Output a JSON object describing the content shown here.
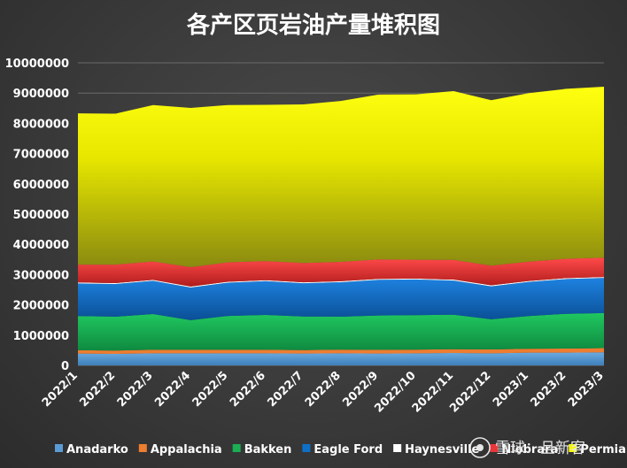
{
  "chart_data": {
    "type": "area",
    "stacked": true,
    "title": "各产区页岩油产量堆积图",
    "xlabel": "",
    "ylabel": "",
    "ylim": [
      0,
      10000000
    ],
    "yticks": [
      0,
      1000000,
      2000000,
      3000000,
      4000000,
      5000000,
      6000000,
      7000000,
      8000000,
      9000000,
      10000000
    ],
    "ytick_labels": [
      "0",
      "1000000",
      "2000000",
      "3000000",
      "4000000",
      "5000000",
      "6000000",
      "7000000",
      "8000000",
      "9000000",
      "10000000"
    ],
    "categories": [
      "2022/1",
      "2022/2",
      "2022/3",
      "2022/4",
      "2022/5",
      "2022/6",
      "2022/7",
      "2022/8",
      "2022/9",
      "2022/10",
      "2022/11",
      "2022/12",
      "2023/1",
      "2023/2",
      "2023/3"
    ],
    "grid": true,
    "legend_position": "bottom",
    "series": [
      {
        "name": "Anadarko",
        "color": "#5b9bd5",
        "values": [
          390000,
          380000,
          400000,
          400000,
          400000,
          400000,
          390000,
          400000,
          390000,
          400000,
          410000,
          400000,
          420000,
          420000,
          430000
        ]
      },
      {
        "name": "Appalachia",
        "color": "#ed7d31",
        "values": [
          110000,
          110000,
          115000,
          115000,
          115000,
          115000,
          115000,
          120000,
          120000,
          120000,
          125000,
          125000,
          130000,
          135000,
          140000
        ]
      },
      {
        "name": "Bakken",
        "color": "#1aaf54",
        "values": [
          1130000,
          1120000,
          1180000,
          980000,
          1120000,
          1150000,
          1110000,
          1090000,
          1140000,
          1140000,
          1140000,
          1000000,
          1080000,
          1150000,
          1160000
        ]
      },
      {
        "name": "Eagle Ford",
        "color": "#0f6fc6",
        "values": [
          1080000,
          1080000,
          1100000,
          1080000,
          1100000,
          1120000,
          1100000,
          1140000,
          1180000,
          1180000,
          1130000,
          1090000,
          1130000,
          1150000,
          1160000
        ]
      },
      {
        "name": "Haynesville",
        "color": "#ffffff",
        "values": [
          30000,
          30000,
          30000,
          30000,
          30000,
          30000,
          30000,
          30000,
          30000,
          30000,
          30000,
          30000,
          30000,
          30000,
          30000
        ]
      },
      {
        "name": "Niobrara",
        "color": "#e8373a",
        "values": [
          590000,
          610000,
          610000,
          640000,
          640000,
          630000,
          640000,
          640000,
          640000,
          620000,
          650000,
          650000,
          640000,
          640000,
          640000
        ]
      },
      {
        "name": "Permian",
        "color": "#f7f700",
        "values": [
          5000000,
          4990000,
          5170000,
          5265000,
          5200000,
          5165000,
          5240000,
          5320000,
          5450000,
          5470000,
          5580000,
          5470000,
          5570000,
          5615000,
          5650000
        ]
      }
    ]
  },
  "watermark": {
    "text": "雪球：旦新客"
  }
}
